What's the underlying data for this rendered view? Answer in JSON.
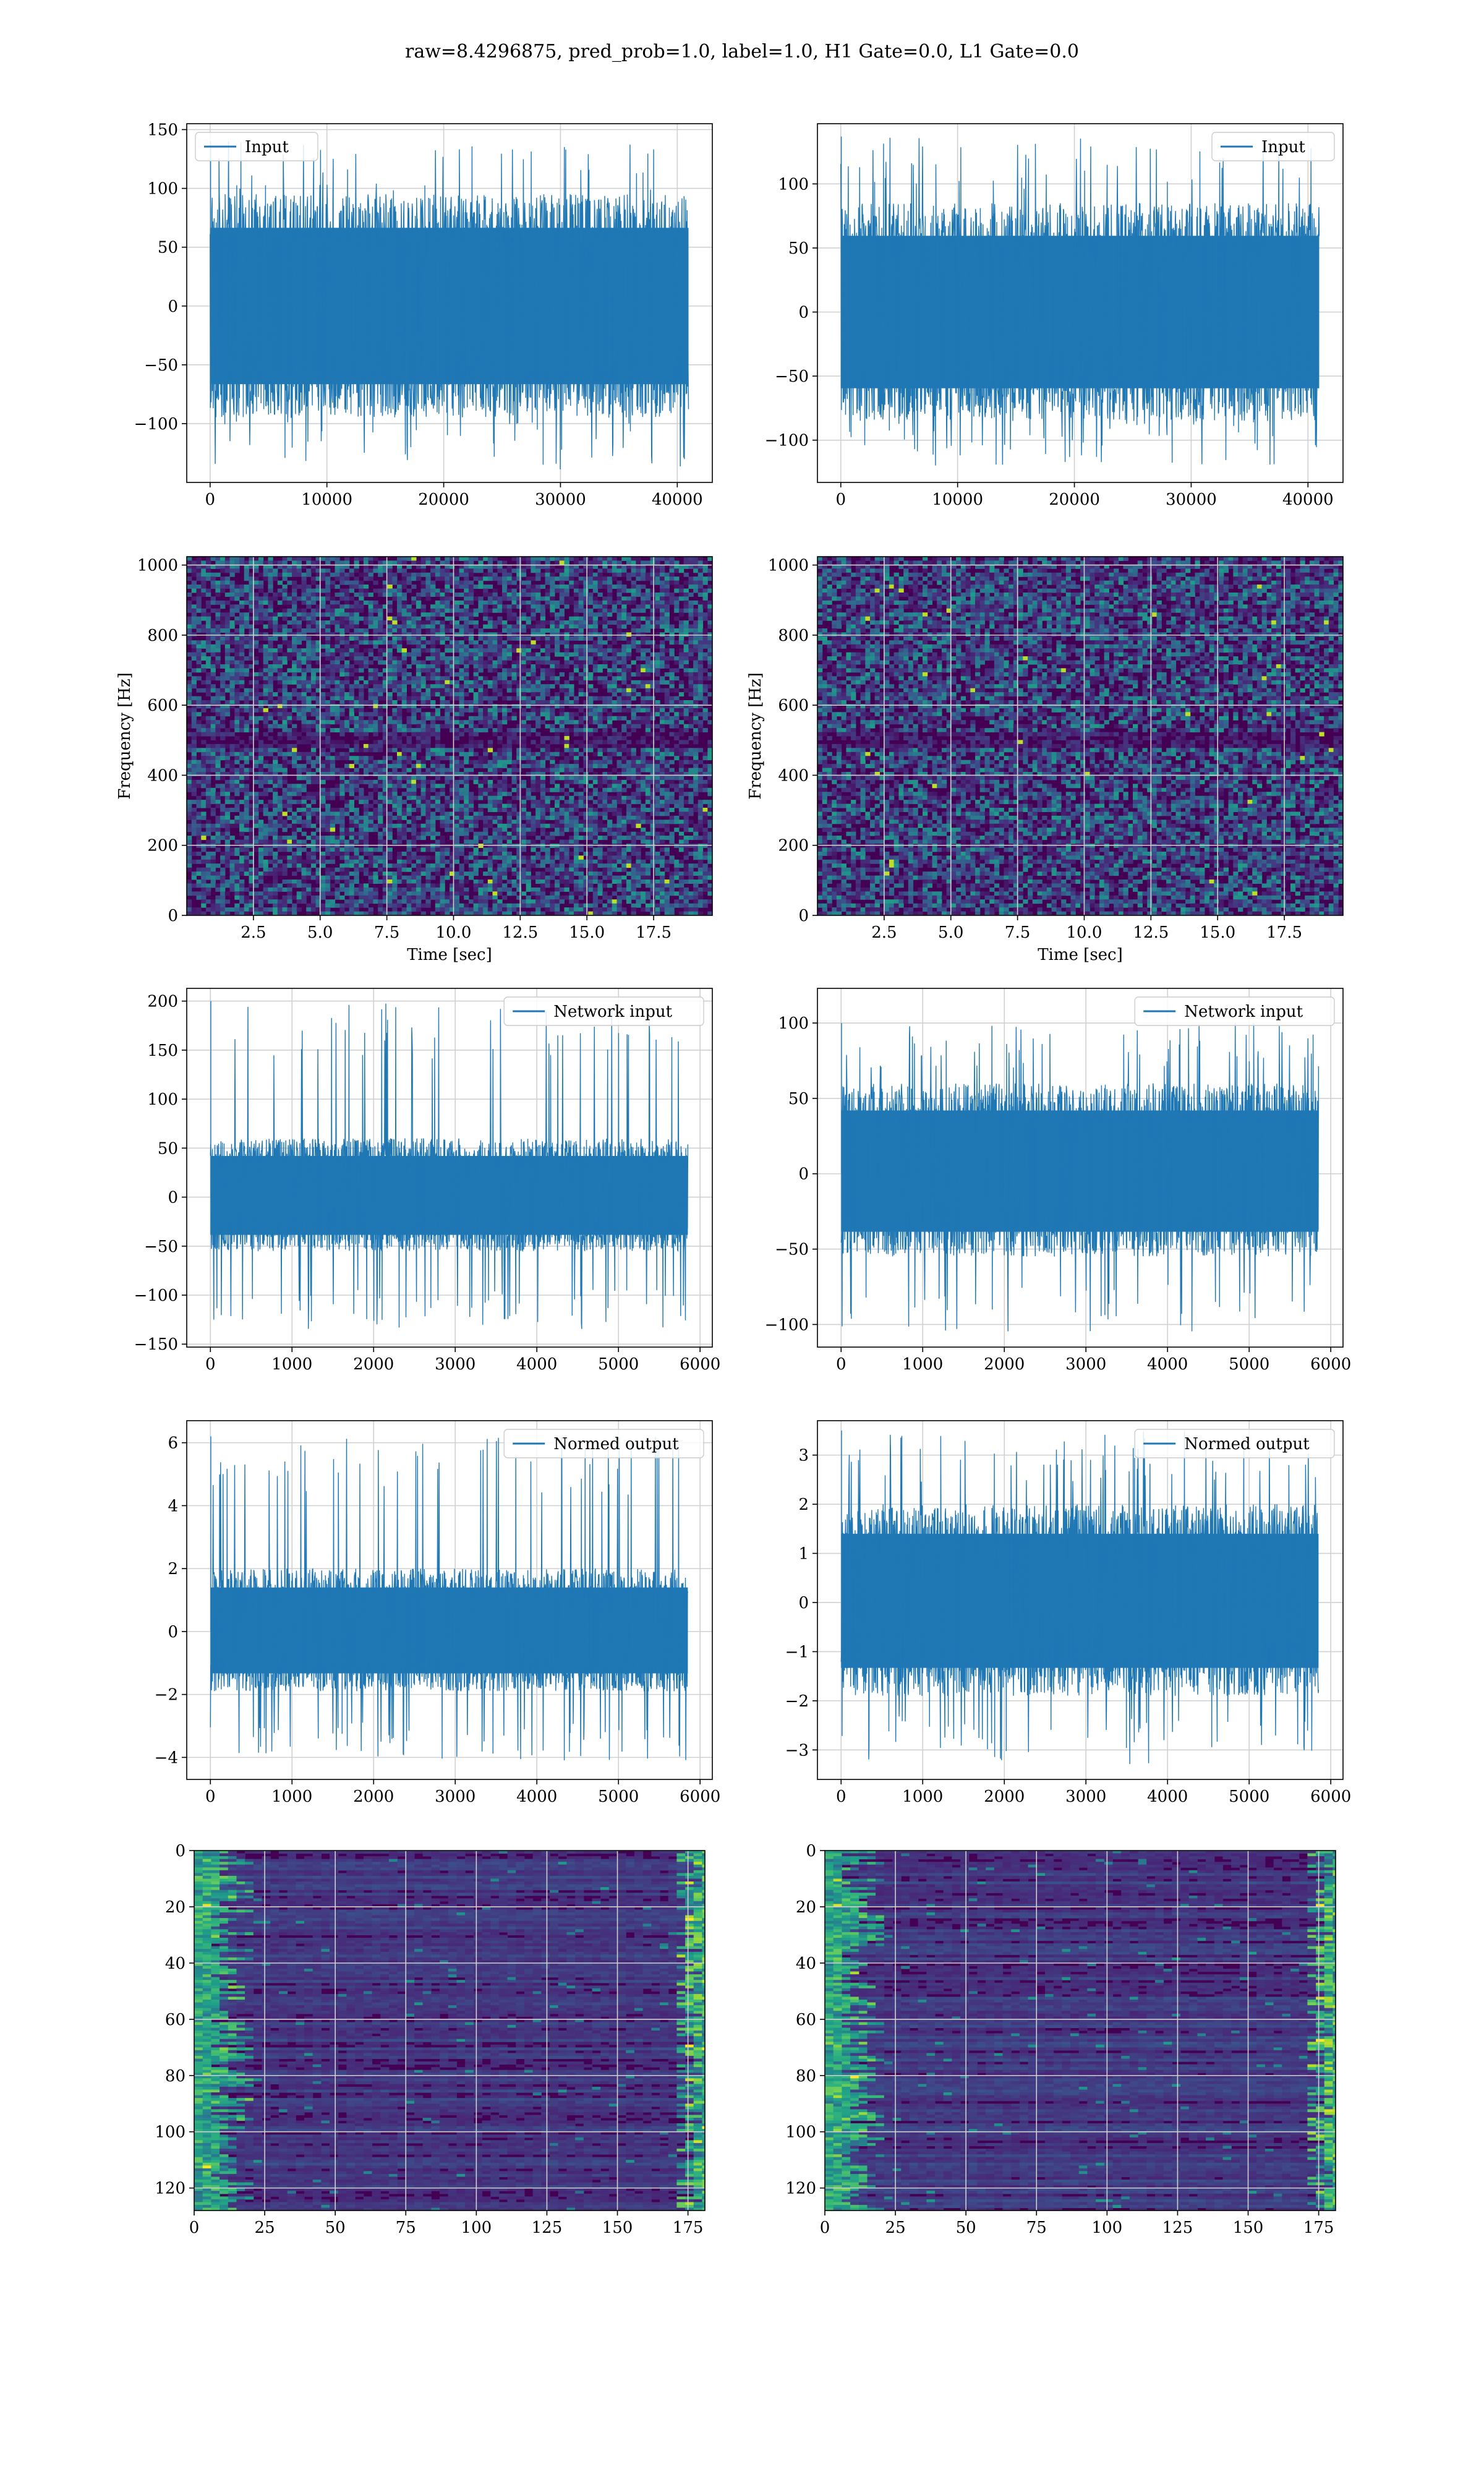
{
  "figure": {
    "title": "raw=8.4296875, pred_prob=1.0, label=1.0, H1 Gate=0.0, L1 Gate=0.0"
  },
  "colors": {
    "line": "#1f77b4",
    "grid": "#d0d0d0",
    "spine": "#000000",
    "viridis": [
      "#440154",
      "#482878",
      "#3e4989",
      "#31688e",
      "#26828e",
      "#1f9e89",
      "#35b779",
      "#6ece58",
      "#b5de2b",
      "#fde725"
    ]
  },
  "chart_data": [
    {
      "id": "r1c1",
      "type": "line",
      "title": "",
      "xlabel": "",
      "ylabel": "",
      "legend": "upper-left",
      "grid": true,
      "series": [
        {
          "name": "Input",
          "n_samples": 40960,
          "y_min": -140,
          "y_max": 140,
          "typical_range": [
            -95,
            95
          ]
        }
      ],
      "xlim": [
        -2000,
        43000
      ],
      "ylim": [
        -150,
        155
      ],
      "xticks": [
        0,
        10000,
        20000,
        30000,
        40000
      ],
      "xtick_labels": [
        "0",
        "10000",
        "20000",
        "30000",
        "40000"
      ],
      "yticks": [
        -100,
        -50,
        0,
        50,
        100,
        150
      ],
      "ytick_labels": [
        "−100",
        "−50",
        "0",
        "50",
        "100",
        "150"
      ]
    },
    {
      "id": "r1c2",
      "type": "line",
      "title": "",
      "xlabel": "",
      "ylabel": "",
      "legend": "upper-right",
      "grid": true,
      "series": [
        {
          "name": "Input",
          "n_samples": 40960,
          "y_min": -120,
          "y_max": 137,
          "typical_range": [
            -85,
            85
          ]
        }
      ],
      "xlim": [
        -2000,
        43000
      ],
      "ylim": [
        -133,
        147
      ],
      "xticks": [
        0,
        10000,
        20000,
        30000,
        40000
      ],
      "xtick_labels": [
        "0",
        "10000",
        "20000",
        "30000",
        "40000"
      ],
      "yticks": [
        -100,
        -50,
        0,
        50,
        100
      ],
      "ytick_labels": [
        "−100",
        "−50",
        "0",
        "50",
        "100"
      ]
    },
    {
      "id": "r2c1",
      "type": "heatmap",
      "title": "",
      "xlabel": "Time [sec]",
      "ylabel": "Frequency [Hz]",
      "grid": true,
      "colormap": "viridis",
      "description_band_hz": 500,
      "xlim": [
        0,
        19.7
      ],
      "ylim": [
        0,
        1024
      ],
      "xticks": [
        2.5,
        5.0,
        7.5,
        10.0,
        12.5,
        15.0,
        17.5
      ],
      "xtick_labels": [
        "2.5",
        "5.0",
        "7.5",
        "10.0",
        "12.5",
        "15.0",
        "17.5"
      ],
      "yticks": [
        0,
        200,
        400,
        600,
        800,
        1000
      ],
      "ytick_labels": [
        "0",
        "200",
        "400",
        "600",
        "800",
        "1000"
      ]
    },
    {
      "id": "r2c2",
      "type": "heatmap",
      "title": "",
      "xlabel": "Time [sec]",
      "ylabel": "Frequency [Hz]",
      "grid": true,
      "colormap": "viridis",
      "description_band_hz": 500,
      "xlim": [
        0,
        19.7
      ],
      "ylim": [
        0,
        1024
      ],
      "xticks": [
        2.5,
        5.0,
        7.5,
        10.0,
        12.5,
        15.0,
        17.5
      ],
      "xtick_labels": [
        "2.5",
        "5.0",
        "7.5",
        "10.0",
        "12.5",
        "15.0",
        "17.5"
      ],
      "yticks": [
        0,
        200,
        400,
        600,
        800,
        1000
      ],
      "ytick_labels": [
        "0",
        "200",
        "400",
        "600",
        "800",
        "1000"
      ]
    },
    {
      "id": "r3c1",
      "type": "line",
      "title": "",
      "xlabel": "",
      "ylabel": "",
      "legend": "upper-right",
      "grid": true,
      "series": [
        {
          "name": "Network input",
          "n_samples": 5850,
          "y_min": -135,
          "y_max": 200,
          "typical_range": [
            -55,
            60
          ]
        }
      ],
      "xlim": [
        -290,
        6150
      ],
      "ylim": [
        -153,
        213
      ],
      "xticks": [
        0,
        1000,
        2000,
        3000,
        4000,
        5000,
        6000
      ],
      "xtick_labels": [
        "0",
        "1000",
        "2000",
        "3000",
        "4000",
        "5000",
        "6000"
      ],
      "yticks": [
        -150,
        -100,
        -50,
        0,
        50,
        100,
        150,
        200
      ],
      "ytick_labels": [
        "−150",
        "−100",
        "−50",
        "0",
        "50",
        "100",
        "150",
        "200"
      ]
    },
    {
      "id": "r3c2",
      "type": "line",
      "title": "",
      "xlabel": "",
      "ylabel": "",
      "legend": "upper-right",
      "grid": true,
      "series": [
        {
          "name": "Network input",
          "n_samples": 5850,
          "y_min": -105,
          "y_max": 100,
          "typical_range": [
            -55,
            60
          ]
        }
      ],
      "xlim": [
        -290,
        6150
      ],
      "ylim": [
        -115,
        123
      ],
      "xticks": [
        0,
        1000,
        2000,
        3000,
        4000,
        5000,
        6000
      ],
      "xtick_labels": [
        "0",
        "1000",
        "2000",
        "3000",
        "4000",
        "5000",
        "6000"
      ],
      "yticks": [
        -100,
        -50,
        0,
        50,
        100
      ],
      "ytick_labels": [
        "−100",
        "−50",
        "0",
        "50",
        "100"
      ]
    },
    {
      "id": "r4c1",
      "type": "line",
      "title": "",
      "xlabel": "",
      "ylabel": "",
      "legend": "upper-right",
      "grid": true,
      "series": [
        {
          "name": "Normed output",
          "n_samples": 5850,
          "y_min": -4.1,
          "y_max": 6.2,
          "typical_range": [
            -1.9,
            2.0
          ]
        }
      ],
      "xlim": [
        -290,
        6150
      ],
      "ylim": [
        -4.7,
        6.7
      ],
      "xticks": [
        0,
        1000,
        2000,
        3000,
        4000,
        5000,
        6000
      ],
      "xtick_labels": [
        "0",
        "1000",
        "2000",
        "3000",
        "4000",
        "5000",
        "6000"
      ],
      "yticks": [
        -4,
        -2,
        0,
        2,
        4,
        6
      ],
      "ytick_labels": [
        "−4",
        "−2",
        "0",
        "2",
        "4",
        "6"
      ]
    },
    {
      "id": "r4c2",
      "type": "line",
      "title": "",
      "xlabel": "",
      "ylabel": "",
      "legend": "upper-right",
      "grid": true,
      "series": [
        {
          "name": "Normed output",
          "n_samples": 5850,
          "y_min": -3.3,
          "y_max": 3.5,
          "typical_range": [
            -1.9,
            2.0
          ]
        }
      ],
      "xlim": [
        -290,
        6150
      ],
      "ylim": [
        -3.6,
        3.7
      ],
      "xticks": [
        0,
        1000,
        2000,
        3000,
        4000,
        5000,
        6000
      ],
      "xtick_labels": [
        "0",
        "1000",
        "2000",
        "3000",
        "4000",
        "5000",
        "6000"
      ],
      "yticks": [
        -3,
        -2,
        -1,
        0,
        1,
        2,
        3
      ],
      "ytick_labels": [
        "−3",
        "−2",
        "−1",
        "0",
        "1",
        "2",
        "3"
      ]
    },
    {
      "id": "r5c1",
      "type": "heatmap",
      "title": "",
      "xlabel": "",
      "ylabel": "",
      "grid": true,
      "colormap": "viridis",
      "y_inverted": true,
      "xlim": [
        0,
        181
      ],
      "ylim": [
        0,
        128
      ],
      "xticks": [
        0,
        25,
        50,
        75,
        100,
        125,
        150,
        175
      ],
      "xtick_labels": [
        "0",
        "25",
        "50",
        "75",
        "100",
        "125",
        "150",
        "175"
      ],
      "yticks": [
        0,
        20,
        40,
        60,
        80,
        100,
        120
      ],
      "ytick_labels": [
        "0",
        "20",
        "40",
        "60",
        "80",
        "100",
        "120"
      ]
    },
    {
      "id": "r5c2",
      "type": "heatmap",
      "title": "",
      "xlabel": "",
      "ylabel": "",
      "grid": true,
      "colormap": "viridis",
      "y_inverted": true,
      "xlim": [
        0,
        181
      ],
      "ylim": [
        0,
        128
      ],
      "xticks": [
        0,
        25,
        50,
        75,
        100,
        125,
        150,
        175
      ],
      "xtick_labels": [
        "0",
        "25",
        "50",
        "75",
        "100",
        "125",
        "150",
        "175"
      ],
      "yticks": [
        0,
        20,
        40,
        60,
        80,
        100,
        120
      ],
      "ytick_labels": [
        "0",
        "20",
        "40",
        "60",
        "80",
        "100",
        "120"
      ]
    }
  ]
}
